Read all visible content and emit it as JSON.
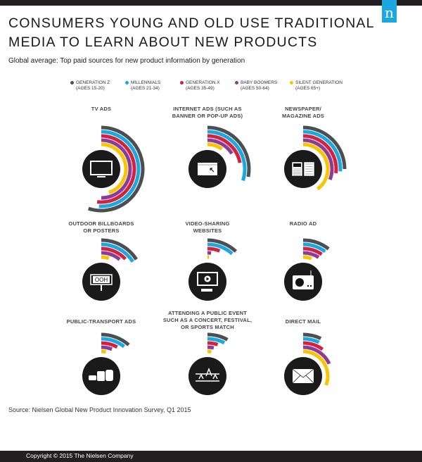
{
  "header": {
    "title_line1": "CONSUMERS YOUNG AND OLD USE TRADITIONAL",
    "title_line2": "MEDIA TO LEARN ABOUT NEW PRODUCTS",
    "subtitle": "Global average: Top paid sources for new product information by generation",
    "logo": "n"
  },
  "legend": [
    {
      "name": "GENERATION Z",
      "ages": "(AGES 15-20)",
      "color": "#4b4f54"
    },
    {
      "name": "MILLENNIALS",
      "ages": "(AGES 21-34)",
      "color": "#1ba8e0"
    },
    {
      "name": "GENERATION X",
      "ages": "(AGES 35-49)",
      "color": "#d4213d"
    },
    {
      "name": "BABY BOOMERS",
      "ages": "(AGES 50-64)",
      "color": "#8e3a96"
    },
    {
      "name": "SILENT GENERATION",
      "ages": "(AGES 65+)",
      "color": "#f7c600"
    }
  ],
  "chart_data": {
    "type": "radial-bar",
    "unit": "percent of respondents (estimated from arc length, full circle = 100%)",
    "series": [
      "GENERATION Z",
      "MILLENNIALS",
      "GENERATION X",
      "BABY BOOMERS",
      "SILENT GENERATION"
    ],
    "panels": [
      {
        "label_lines": [
          "TV ADS"
        ],
        "icon": "television-icon",
        "values": [
          55,
          51,
          52,
          50,
          45
        ]
      },
      {
        "label_lines": [
          "INTERNET ADS (SUCH AS",
          "BANNER OR POP-UP ADS)"
        ],
        "icon": "browser-window-cursor-icon",
        "values": [
          28,
          30,
          22,
          16,
          10
        ]
      },
      {
        "label_lines": [
          "NEWSPAPER/",
          "MAGAZINE ADS"
        ],
        "icon": "open-book-icon",
        "values": [
          25,
          26,
          27,
          31,
          40
        ]
      },
      {
        "label_lines": [
          "OUTDOOR BILLBOARDS",
          "OR POSTERS"
        ],
        "icon": "billboard-icon",
        "icon_text": "OOH",
        "values": [
          16,
          16,
          13,
          11,
          5
        ]
      },
      {
        "label_lines": [
          "VIDEO-SHARING",
          "WEBSITES"
        ],
        "icon": "video-monitor-icon",
        "values": [
          12,
          11.5,
          6,
          2,
          1
        ]
      },
      {
        "label_lines": [
          "RADIO AD"
        ],
        "icon": "radio-icon",
        "values": [
          10.5,
          10,
          9.5,
          9,
          5.5
        ]
      },
      {
        "label_lines": [
          "PUBLIC-TRANSPORT ADS"
        ],
        "icon": "vehicles-icon",
        "values": [
          11.5,
          10.5,
          8,
          6,
          3
        ]
      },
      {
        "label_lines": [
          "ATTENDING A PUBLIC EVENT",
          "SUCH AS A CONCERT, FESTIVAL,",
          "OR SPORTS MATCH"
        ],
        "icon": "crowd-icon",
        "values": [
          8,
          7.5,
          5,
          3.5,
          2.5
        ]
      },
      {
        "label_lines": [
          "DIRECT MAIL"
        ],
        "icon": "envelope-icon",
        "values": [
          7,
          7,
          10,
          18,
          31
        ]
      }
    ]
  },
  "source": "Source: Nielsen Global New Product Innovation Survey, Q1 2015",
  "footer": {
    "copyright": "Copyright © 2015 The Nielsen Company"
  }
}
